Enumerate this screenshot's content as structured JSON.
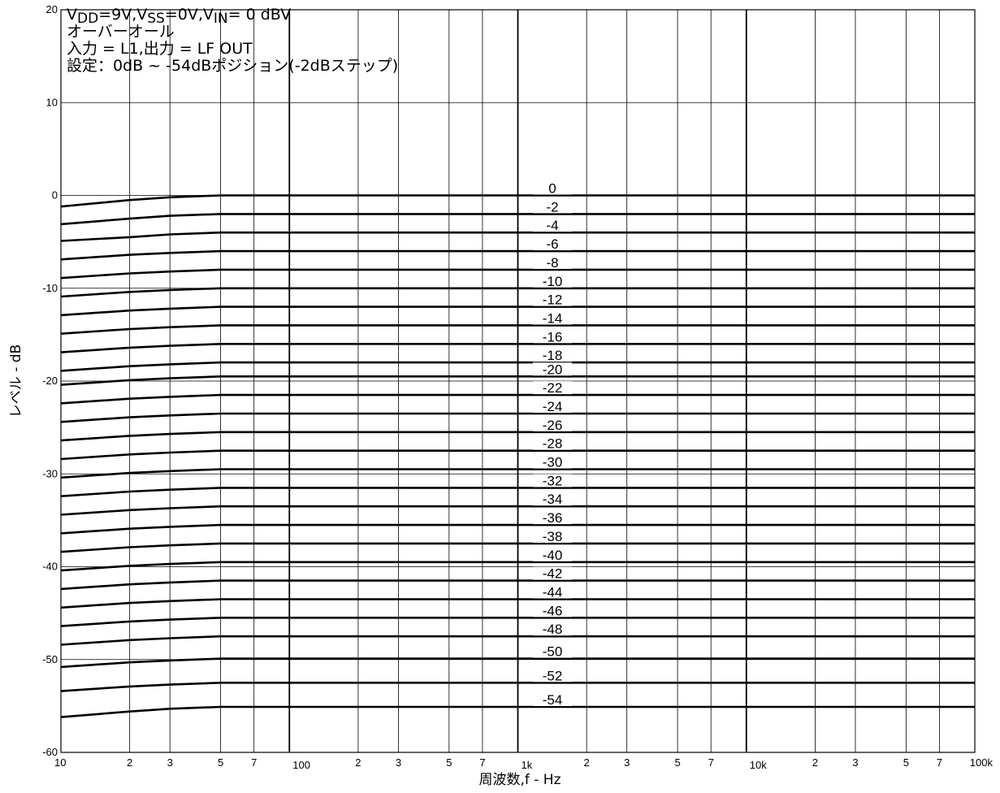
{
  "chart_data": {
    "type": "line",
    "title": "",
    "xlabel": "周波数,f  -  Hz",
    "ylabel": "レベル  -  dB",
    "x_scale": "log",
    "xlim": [
      10,
      100000
    ],
    "ylim": [
      -60,
      20
    ],
    "grid": true,
    "y_ticks": [
      "20",
      "10",
      "0",
      "-10",
      "-20",
      "-30",
      "-40",
      "-50",
      "-60"
    ],
    "x_tick_labels": [
      {
        "value": 10,
        "label": "10"
      },
      {
        "value": 20,
        "label": "2"
      },
      {
        "value": 30,
        "label": "3"
      },
      {
        "value": 50,
        "label": "5"
      },
      {
        "value": 70,
        "label": "7"
      },
      {
        "value": 100,
        "label": "100"
      },
      {
        "value": 200,
        "label": "2"
      },
      {
        "value": 300,
        "label": "3"
      },
      {
        "value": 500,
        "label": "5"
      },
      {
        "value": 700,
        "label": "7"
      },
      {
        "value": 1000,
        "label": "1k"
      },
      {
        "value": 2000,
        "label": "2"
      },
      {
        "value": 3000,
        "label": "3"
      },
      {
        "value": 5000,
        "label": "5"
      },
      {
        "value": 7000,
        "label": "7"
      },
      {
        "value": 10000,
        "label": "10k"
      },
      {
        "value": 20000,
        "label": "2"
      },
      {
        "value": 30000,
        "label": "3"
      },
      {
        "value": 50000,
        "label": "5"
      },
      {
        "value": 70000,
        "label": "7"
      },
      {
        "value": 100000,
        "label": "100k"
      }
    ],
    "annotation_lines": [
      {
        "text": "V",
        "sub": "DD",
        "rest": "=9V,V",
        "sub2": "SS",
        "rest2": "=0V,V",
        "sub3": "IN",
        "rest3": "= 0 dBV"
      },
      {
        "text": "オーバーオール"
      },
      {
        "text": "入力 = L1,出力 = LF OUT"
      },
      {
        "text": "設定：0dB ~ -54dBポジション(-2dBステップ)"
      }
    ],
    "x": [
      10,
      20,
      30,
      50,
      100,
      1000,
      10000,
      100000
    ],
    "series": [
      {
        "name": "0",
        "values": [
          -1.2,
          -0.5,
          -0.2,
          0,
          0,
          0,
          0,
          0
        ]
      },
      {
        "name": "-2",
        "values": [
          -3.1,
          -2.5,
          -2.2,
          -2,
          -2,
          -2,
          -2,
          -2
        ]
      },
      {
        "name": "-4",
        "values": [
          -4.9,
          -4.5,
          -4.2,
          -4,
          -4,
          -4,
          -4,
          -4
        ]
      },
      {
        "name": "-6",
        "values": [
          -6.9,
          -6.4,
          -6.2,
          -6,
          -6,
          -6,
          -6,
          -6
        ]
      },
      {
        "name": "-8",
        "values": [
          -8.9,
          -8.4,
          -8.2,
          -8,
          -8,
          -8,
          -8,
          -8
        ]
      },
      {
        "name": "-10",
        "values": [
          -10.9,
          -10.4,
          -10.2,
          -10,
          -10,
          -10,
          -10,
          -10
        ]
      },
      {
        "name": "-12",
        "values": [
          -12.9,
          -12.4,
          -12.2,
          -12,
          -12,
          -12,
          -12,
          -12
        ]
      },
      {
        "name": "-14",
        "values": [
          -14.9,
          -14.4,
          -14.2,
          -14,
          -14,
          -14,
          -14,
          -14
        ]
      },
      {
        "name": "-16",
        "values": [
          -16.9,
          -16.4,
          -16.2,
          -16,
          -16,
          -16,
          -16,
          -16
        ]
      },
      {
        "name": "-18",
        "values": [
          -18.9,
          -18.4,
          -18.2,
          -18,
          -18,
          -18,
          -18,
          -18
        ]
      },
      {
        "name": "-20",
        "values": [
          -20.4,
          -19.9,
          -19.7,
          -19.5,
          -19.5,
          -19.5,
          -19.5,
          -19.5
        ]
      },
      {
        "name": "-22",
        "values": [
          -22.4,
          -21.9,
          -21.7,
          -21.5,
          -21.5,
          -21.5,
          -21.5,
          -21.5
        ]
      },
      {
        "name": "-24",
        "values": [
          -24.4,
          -23.9,
          -23.7,
          -23.5,
          -23.5,
          -23.5,
          -23.5,
          -23.5
        ]
      },
      {
        "name": "-26",
        "values": [
          -26.4,
          -25.9,
          -25.7,
          -25.5,
          -25.5,
          -25.5,
          -25.5,
          -25.5
        ]
      },
      {
        "name": "-28",
        "values": [
          -28.4,
          -27.9,
          -27.7,
          -27.5,
          -27.5,
          -27.5,
          -27.5,
          -27.5
        ]
      },
      {
        "name": "-30",
        "values": [
          -30.4,
          -29.9,
          -29.7,
          -29.5,
          -29.5,
          -29.5,
          -29.5,
          -29.5
        ]
      },
      {
        "name": "-32",
        "values": [
          -32.4,
          -31.9,
          -31.7,
          -31.5,
          -31.5,
          -31.5,
          -31.5,
          -31.5
        ]
      },
      {
        "name": "-34",
        "values": [
          -34.4,
          -33.9,
          -33.7,
          -33.5,
          -33.5,
          -33.5,
          -33.5,
          -33.5
        ]
      },
      {
        "name": "-36",
        "values": [
          -36.4,
          -35.9,
          -35.7,
          -35.5,
          -35.5,
          -35.5,
          -35.5,
          -35.5
        ]
      },
      {
        "name": "-38",
        "values": [
          -38.4,
          -37.9,
          -37.7,
          -37.5,
          -37.5,
          -37.5,
          -37.5,
          -37.5
        ]
      },
      {
        "name": "-40",
        "values": [
          -40.4,
          -39.9,
          -39.7,
          -39.5,
          -39.5,
          -39.5,
          -39.5,
          -39.5
        ]
      },
      {
        "name": "-42",
        "values": [
          -42.4,
          -41.9,
          -41.7,
          -41.5,
          -41.5,
          -41.5,
          -41.5,
          -41.5
        ]
      },
      {
        "name": "-44",
        "values": [
          -44.4,
          -43.9,
          -43.7,
          -43.5,
          -43.5,
          -43.5,
          -43.5,
          -43.5
        ]
      },
      {
        "name": "-46",
        "values": [
          -46.4,
          -45.9,
          -45.7,
          -45.5,
          -45.5,
          -45.5,
          -45.5,
          -45.5
        ]
      },
      {
        "name": "-48",
        "values": [
          -48.4,
          -47.9,
          -47.7,
          -47.5,
          -47.5,
          -47.5,
          -47.5,
          -47.5
        ]
      },
      {
        "name": "-50",
        "values": [
          -50.8,
          -50.3,
          -50.1,
          -49.9,
          -49.9,
          -49.9,
          -49.9,
          -49.9
        ]
      },
      {
        "name": "-52",
        "values": [
          -53.4,
          -52.9,
          -52.7,
          -52.5,
          -52.5,
          -52.5,
          -52.5,
          -52.5
        ]
      },
      {
        "name": "-54",
        "values": [
          -56.2,
          -55.6,
          -55.3,
          -55.1,
          -55.1,
          -55.1,
          -55.1,
          -55.1
        ]
      }
    ]
  }
}
